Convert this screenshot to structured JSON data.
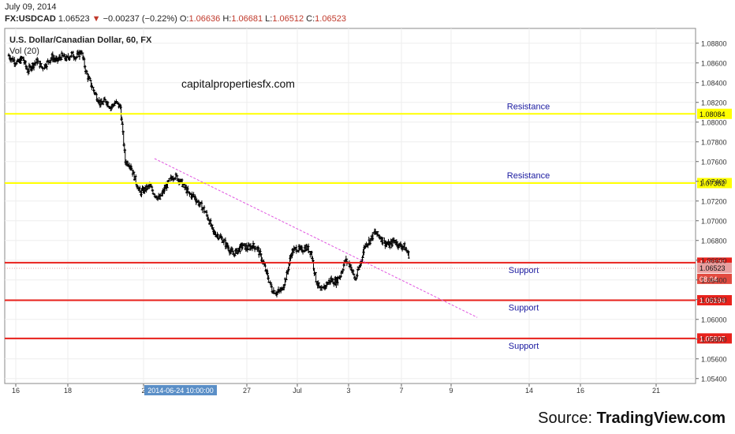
{
  "header": {
    "date": "July 09, 2014",
    "symbol": "FX:USDCAD",
    "last": "1.06523",
    "arrow": "▼",
    "change": "−0.00237 (−0.22%)",
    "o_label": "O:",
    "o": "1.06636",
    "h_label": "H:",
    "h": "1.06681",
    "l_label": "L:",
    "l": "1.06512",
    "c_label": "C:",
    "c": "1.06523"
  },
  "source": {
    "prefix": "Source: ",
    "brand": "TradingView.com"
  },
  "colors": {
    "support": "#e8211b",
    "resistance": "#ffff00",
    "trendline": "#e055e0",
    "candle": "#000000",
    "label_text": "#1a1aa0"
  },
  "chart_data": {
    "type": "candlestick",
    "title": "U.S. Dollar/Canadian Dollar, 60, FX",
    "indicator_label": "Vol (20)",
    "watermark": "capitalpropertiesfx.com",
    "ylim": [
      1.0535,
      1.0895
    ],
    "y_ticks": [
      "1.08800",
      "1.08600",
      "1.08400",
      "1.08200",
      "1.08000",
      "1.07800",
      "1.07600",
      "1.07400",
      "1.07200",
      "1.07000",
      "1.06800",
      "1.06600",
      "1.06400",
      "1.06200",
      "1.06000",
      "1.05800",
      "1.05600",
      "1.05400"
    ],
    "x_ticks": [
      "16",
      "18",
      "2",
      "27",
      "Jul",
      "3",
      "7",
      "9",
      "14",
      "16",
      "21"
    ],
    "x_tooltip": "2014-06-24 10:00:00",
    "grid": true,
    "levels": [
      {
        "name": "Resistance",
        "type": "resistance",
        "value": 1.08084,
        "tag": "1.08084"
      },
      {
        "name": "Resistance",
        "type": "resistance",
        "value": 1.07382,
        "tag": "1.07382"
      },
      {
        "name": "Support",
        "type": "support",
        "value": 1.06575,
        "tag": "1.06575"
      },
      {
        "name": "Support",
        "type": "support",
        "value": 1.06194,
        "tag": "1.06194"
      },
      {
        "name": "Support",
        "type": "support",
        "value": 1.05807,
        "tag": "1.05807"
      }
    ],
    "price_tag": "1.06523",
    "time_tag": "08:04",
    "trendline": {
      "from": {
        "t": 30,
        "price": 1.0763
      },
      "to": {
        "t": 96,
        "price": 1.0602
      }
    },
    "price_path": [
      [
        0,
        1.0868
      ],
      [
        1,
        1.0863
      ],
      [
        2,
        1.086
      ],
      [
        3,
        1.0865
      ],
      [
        4,
        1.0852
      ],
      [
        5,
        1.0858
      ],
      [
        6,
        1.0862
      ],
      [
        7,
        1.0855
      ],
      [
        8,
        1.086
      ],
      [
        9,
        1.0866
      ],
      [
        10,
        1.0862
      ],
      [
        11,
        1.0867
      ],
      [
        12,
        1.0864
      ],
      [
        13,
        1.0869
      ],
      [
        14,
        1.0866
      ],
      [
        15,
        1.0872
      ],
      [
        16,
        1.085
      ],
      [
        17,
        1.0838
      ],
      [
        18,
        1.0827
      ],
      [
        19,
        1.0818
      ],
      [
        20,
        1.0822
      ],
      [
        21,
        1.0815
      ],
      [
        22,
        1.082
      ],
      [
        23,
        1.0815
      ],
      [
        24,
        1.076
      ],
      [
        25,
        1.0757
      ],
      [
        26,
        1.0742
      ],
      [
        27,
        1.0728
      ],
      [
        28,
        1.0732
      ],
      [
        29,
        1.0735
      ],
      [
        30,
        1.0727
      ],
      [
        31,
        1.0722
      ],
      [
        32,
        1.0732
      ],
      [
        33,
        1.074
      ],
      [
        34,
        1.0746
      ],
      [
        35,
        1.0742
      ],
      [
        36,
        1.0735
      ],
      [
        37,
        1.0727
      ],
      [
        38,
        1.0725
      ],
      [
        39,
        1.0718
      ],
      [
        40,
        1.0712
      ],
      [
        41,
        1.0702
      ],
      [
        42,
        1.0688
      ],
      [
        43,
        1.0685
      ],
      [
        44,
        1.068
      ],
      [
        45,
        1.0673
      ],
      [
        46,
        1.0666
      ],
      [
        47,
        1.067
      ],
      [
        48,
        1.0675
      ],
      [
        49,
        1.0672
      ],
      [
        50,
        1.0675
      ],
      [
        51,
        1.0672
      ],
      [
        52,
        1.066
      ],
      [
        53,
        1.0645
      ],
      [
        54,
        1.063
      ],
      [
        55,
        1.0627
      ],
      [
        56,
        1.063
      ],
      [
        57,
        1.0645
      ],
      [
        58,
        1.0668
      ],
      [
        59,
        1.0672
      ],
      [
        60,
        1.067
      ],
      [
        61,
        1.0673
      ],
      [
        62,
        1.0668
      ],
      [
        63,
        1.064
      ],
      [
        64,
        1.0628
      ],
      [
        65,
        1.0635
      ],
      [
        66,
        1.064
      ],
      [
        67,
        1.0638
      ],
      [
        68,
        1.0645
      ],
      [
        69,
        1.066
      ],
      [
        70,
        1.0655
      ],
      [
        71,
        1.064
      ],
      [
        72,
        1.0655
      ],
      [
        73,
        1.0675
      ],
      [
        74,
        1.068
      ],
      [
        75,
        1.0688
      ],
      [
        76,
        1.0684
      ],
      [
        77,
        1.0678
      ],
      [
        78,
        1.0675
      ],
      [
        79,
        1.068
      ],
      [
        80,
        1.0675
      ],
      [
        81,
        1.0674
      ],
      [
        82,
        1.0665
      ]
    ]
  }
}
